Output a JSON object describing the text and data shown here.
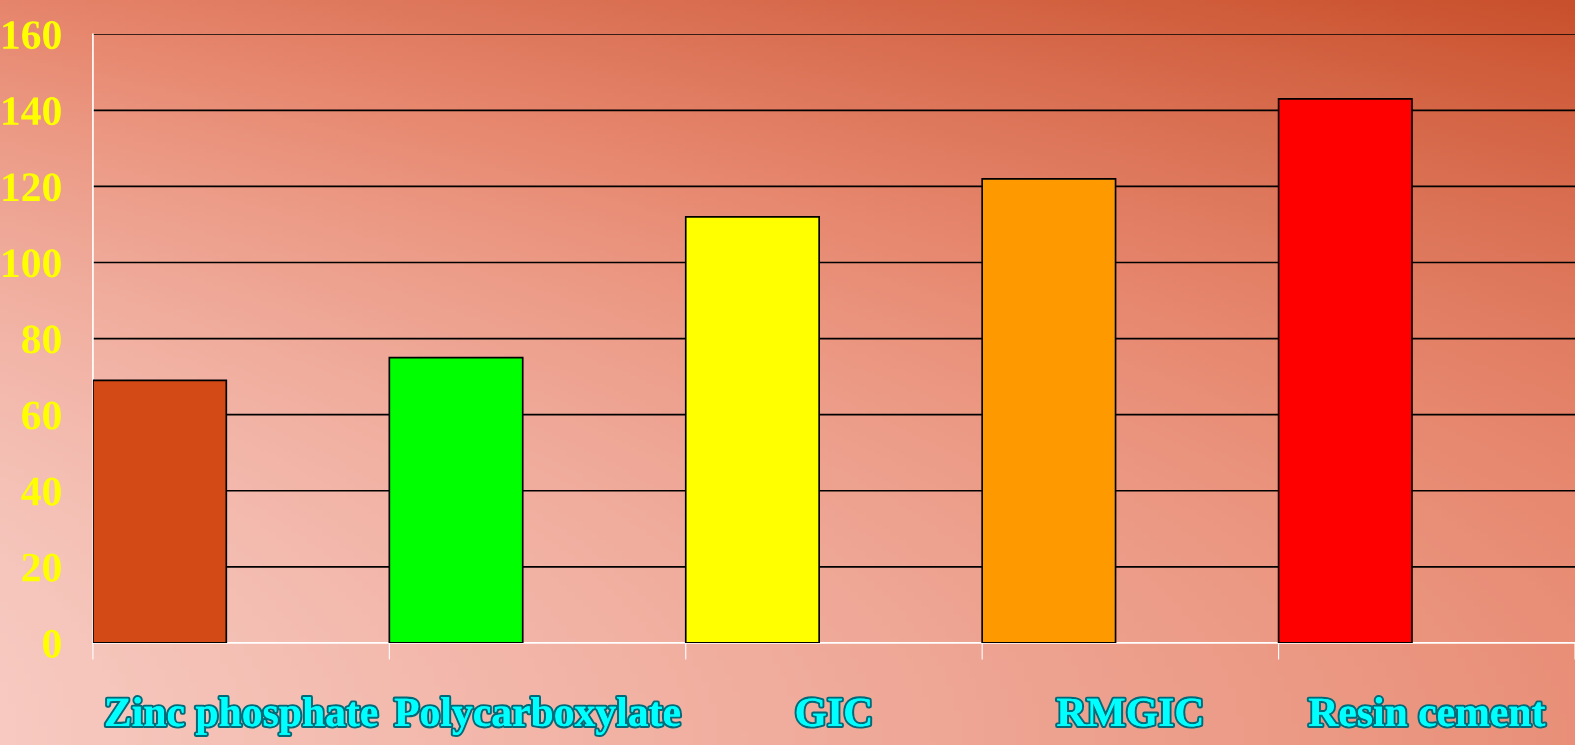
{
  "chart_data": {
    "type": "bar",
    "categories": [
      "Zinc phosphate",
      "Polycarboxylate",
      "GIC",
      "RMGIC",
      "Resin cement"
    ],
    "values": [
      69,
      75,
      112,
      122,
      143
    ],
    "colors": [
      "#d34a17",
      "#00ff00",
      "#ffff00",
      "#ff9900",
      "#ff0000"
    ],
    "ylim": [
      0,
      160
    ],
    "yticks": [
      0,
      20,
      40,
      60,
      80,
      100,
      120,
      140,
      160
    ],
    "grid": "y"
  }
}
